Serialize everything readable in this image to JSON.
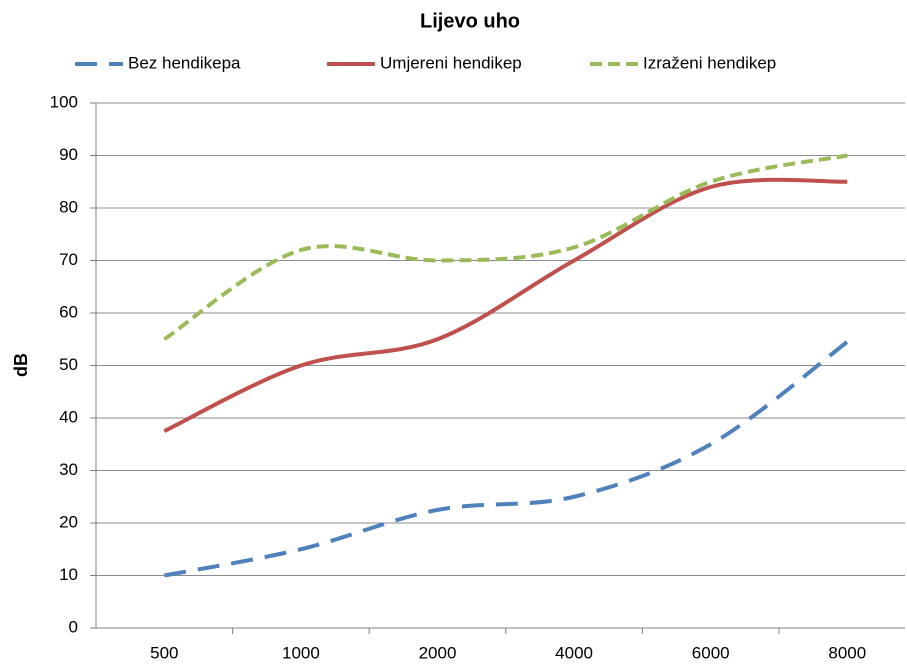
{
  "chart_data": {
    "type": "line",
    "title": "Lijevo uho",
    "y_label": "dB",
    "categories": [
      "500",
      "1000",
      "2000",
      "4000",
      "6000",
      "8000"
    ],
    "series": [
      {
        "name": "Bez hendikepa",
        "color": "#4f81bd",
        "dash": "dashed",
        "values": [
          10,
          15,
          22.5,
          25,
          35,
          54.5
        ]
      },
      {
        "name": "Umjereni hendikep",
        "color": "#c0504d",
        "dash": "solid",
        "values": [
          37.5,
          50,
          55,
          70,
          84,
          85
        ]
      },
      {
        "name": "Izraženi hendikep",
        "color": "#9bbb59",
        "dash": "dotted",
        "values": [
          55,
          72,
          70,
          72.5,
          85,
          90
        ]
      }
    ],
    "ylim": [
      0,
      100
    ],
    "yticks": [
      0,
      10,
      20,
      30,
      40,
      50,
      60,
      70,
      80,
      90,
      100
    ],
    "grid": true,
    "legend": "top"
  }
}
